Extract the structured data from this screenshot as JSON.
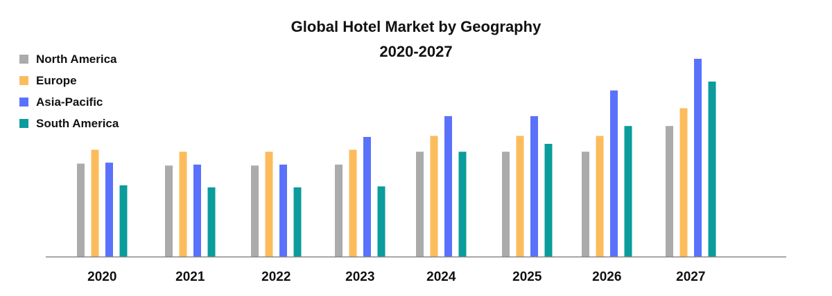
{
  "chart_data": {
    "type": "bar",
    "title": "Global Hotel Market by Geography",
    "subtitle": "2020-2027",
    "xlabel": "",
    "ylabel": "",
    "ylim": [
      0,
      100
    ],
    "grid": false,
    "legend_position": "top-left",
    "categories": [
      "2020",
      "2021",
      "2022",
      "2023",
      "2024",
      "2025",
      "2026",
      "2027"
    ],
    "series": [
      {
        "name": "North America",
        "color": "#ababab",
        "values": [
          47,
          46,
          46,
          46.5,
          53,
          53,
          53,
          66
        ]
      },
      {
        "name": "Europe",
        "color": "#fcbc5c",
        "values": [
          54,
          53,
          53,
          54,
          61,
          61,
          61,
          75
        ]
      },
      {
        "name": "Asia-Pacific",
        "color": "#5a72fb",
        "values": [
          47.5,
          46.5,
          46.5,
          60.5,
          71,
          71,
          84,
          100
        ]
      },
      {
        "name": "South America",
        "color": "#0b9c9c",
        "values": [
          36,
          35,
          35,
          35.5,
          53,
          57,
          66,
          88.5
        ]
      }
    ]
  }
}
